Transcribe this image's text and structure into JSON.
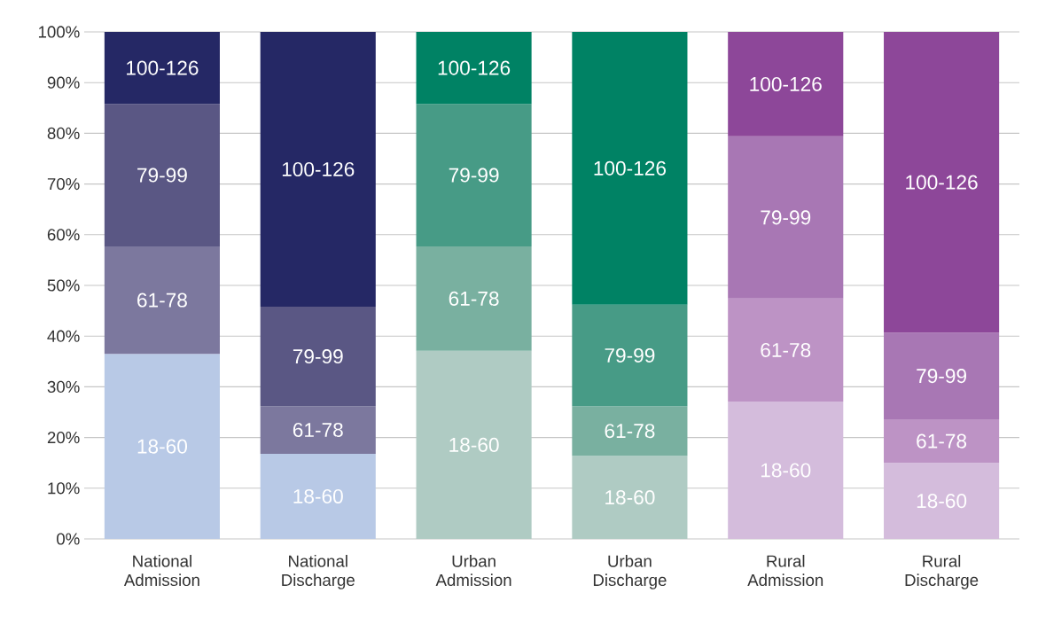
{
  "chart_data": {
    "type": "bar",
    "stacked": true,
    "grid": "y",
    "categories": [
      "National Admission",
      "National Discharge",
      "Urban Admission",
      "Urban Discharge",
      "Rural Admission",
      "Rural Discharge"
    ],
    "series": [
      {
        "name": "18-60",
        "colors": [
          "#b8c9e6",
          "#b8c9e6",
          "#afcbc3",
          "#afcbc3",
          "#d4bcdc",
          "#d4bcdc"
        ],
        "values": [
          36.5,
          16.8,
          37.1,
          16.4,
          27.1,
          15.0
        ]
      },
      {
        "name": "61-78",
        "colors": [
          "#7c789e",
          "#7c789e",
          "#79b0a0",
          "#79b0a0",
          "#bd93c5",
          "#bd93c5"
        ],
        "values": [
          21.2,
          9.4,
          20.6,
          9.8,
          20.3,
          8.6
        ]
      },
      {
        "name": "79-99",
        "colors": [
          "#5a5784",
          "#5a5784",
          "#479b86",
          "#479b86",
          "#a877b4",
          "#a877b4"
        ],
        "values": [
          28.1,
          19.6,
          28.1,
          20.0,
          32.0,
          17.1
        ]
      },
      {
        "name": "100-126",
        "colors": [
          "#252865",
          "#252865",
          "#008264",
          "#008264",
          "#8d4799",
          "#8d4799"
        ],
        "values": [
          14.2,
          54.2,
          14.2,
          53.8,
          20.6,
          59.3
        ]
      }
    ],
    "ylim": [
      0,
      100
    ],
    "yticks": [
      {
        "value": 0,
        "label": "0%"
      },
      {
        "value": 10,
        "label": "10%"
      },
      {
        "value": 20,
        "label": "20%"
      },
      {
        "value": 30,
        "label": "30%"
      },
      {
        "value": 40,
        "label": "40%"
      },
      {
        "value": 50,
        "label": "50%"
      },
      {
        "value": 60,
        "label": "60%"
      },
      {
        "value": 70,
        "label": "70%"
      },
      {
        "value": 80,
        "label": "80%"
      },
      {
        "value": 90,
        "label": "90%"
      },
      {
        "value": 100,
        "label": "100%"
      }
    ]
  }
}
